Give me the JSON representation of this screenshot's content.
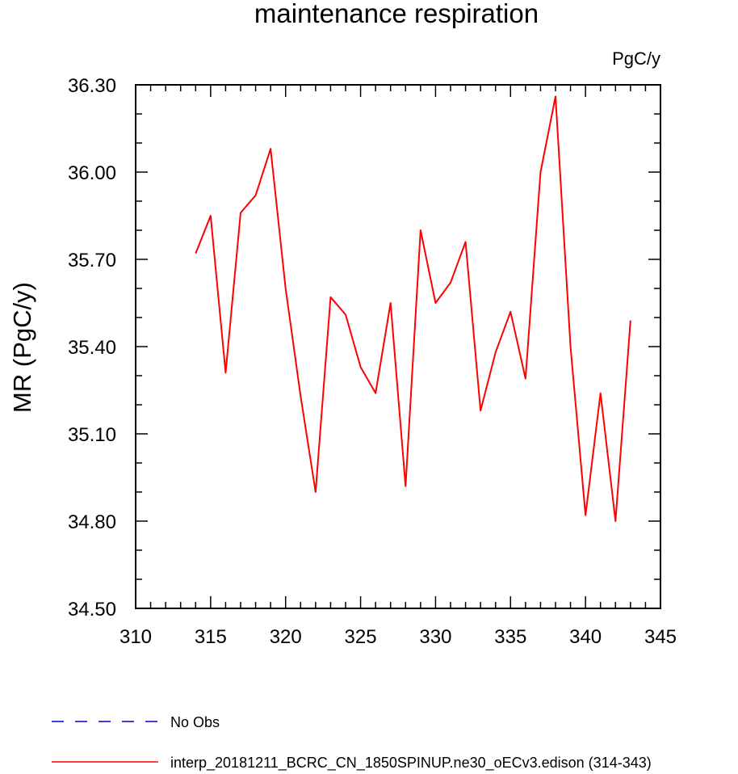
{
  "chart_data": {
    "type": "line",
    "title": "maintenance respiration",
    "units_label": "PgC/y",
    "ylabel": "MR  (PgC/y)",
    "xlabel": "",
    "xlim": [
      310,
      345
    ],
    "ylim": [
      34.5,
      36.3
    ],
    "x_ticks": [
      310,
      315,
      320,
      325,
      330,
      335,
      340,
      345
    ],
    "y_ticks": [
      "34.50",
      "34.80",
      "35.10",
      "35.40",
      "35.70",
      "36.00",
      "36.30"
    ],
    "grid": false,
    "series": [
      {
        "name": "interp_20181211_BCRC_CN_1850SPINUP.ne30_oECv3.edison (314-343)",
        "color": "#ff0000",
        "dash": "solid",
        "x": [
          314,
          315,
          316,
          317,
          318,
          319,
          320,
          321,
          322,
          323,
          324,
          325,
          326,
          327,
          328,
          329,
          330,
          331,
          332,
          333,
          334,
          335,
          336,
          337,
          338,
          339,
          340,
          341,
          342,
          343
        ],
        "values": [
          35.72,
          35.85,
          35.31,
          35.86,
          35.92,
          36.08,
          35.6,
          35.23,
          34.9,
          35.57,
          35.51,
          35.33,
          35.24,
          35.55,
          34.92,
          35.8,
          35.55,
          35.62,
          35.76,
          35.18,
          35.38,
          35.52,
          35.29,
          36.0,
          36.26,
          35.4,
          34.82,
          35.24,
          34.8,
          35.49
        ]
      }
    ],
    "legend": [
      {
        "label": "No Obs",
        "color": "#0000cc",
        "dash": "dashed"
      },
      {
        "label": "interp_20181211_BCRC_CN_1850SPINUP.ne30_oECv3.edison (314-343)",
        "color": "#ff0000",
        "dash": "solid"
      }
    ],
    "legend_placement": "bottom-left"
  }
}
